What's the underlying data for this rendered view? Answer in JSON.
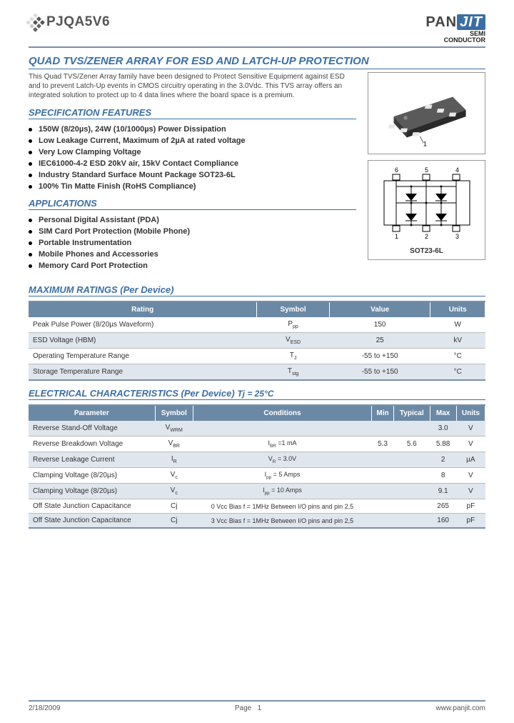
{
  "header": {
    "part_number": "PJQA5V6",
    "brand_pan": "PAN",
    "brand_jit": "JIT",
    "brand_sub1": "SEMI",
    "brand_sub2": "CONDUCTOR"
  },
  "title": "QUAD TVS/ZENER ARRAY FOR ESD AND LATCH-UP PROTECTION",
  "intro": "This Quad TVS/Zener Array family have been designed to Protect Sensitive Equipment against ESD and to prevent Latch-Up events in CMOS circuitry operating in the 3.0Vdc. This TVS array offers an integrated solution to protect up to 4 data lines where the board space is a premium.",
  "spec_heading": "SPECIFICATION FEATURES",
  "spec_features": [
    "150W (8/20µs), 24W (10/1000µs) Power Dissipation",
    "Low Leakage Current, Maximum of 2µA at rated voltage",
    "Very Low Clamping Voltage",
    "IEC61000-4-2 ESD 20kV air, 15kV Contact Compliance",
    "Industry Standard Surface Mount Package SOT23-6L",
    "100% Tin Matte Finish (RoHS Compliance)"
  ],
  "app_heading": "APPLICATIONS",
  "applications": [
    "Personal Digital Assistant (PDA)",
    "SIM Card Port Protection (Mobile Phone)",
    "Portable Instrumentation",
    "Mobile Phones and Accessories",
    "Memory Card Port Protection"
  ],
  "package": {
    "pin1": "1",
    "pins_top": [
      "6",
      "5",
      "4"
    ],
    "pins_bot": [
      "1",
      "2",
      "3"
    ],
    "label": "SOT23-6L"
  },
  "max_ratings": {
    "heading": "MAXIMUM RATINGS  (Per Device)",
    "columns": [
      "Rating",
      "Symbol",
      "Value",
      "Units"
    ],
    "rows": [
      {
        "rating": "Peak Pulse Power (8/20µs Waveform)",
        "symbol": "P<sub>pp</sub>",
        "value": "150",
        "units": "W",
        "alt": false
      },
      {
        "rating": "ESD Voltage (HBM)",
        "symbol": "V<sub>ESD</sub>",
        "value": "25",
        "units": "kV",
        "alt": true
      },
      {
        "rating": "Operating Temperature Range",
        "symbol": "T<sub>J</sub>",
        "value": "-55 to +150",
        "units": "°C",
        "alt": false
      },
      {
        "rating": "Storage Temperature Range",
        "symbol": "T<sub>stg</sub>",
        "value": "-55 to +150",
        "units": "°C",
        "alt": true
      }
    ]
  },
  "elec": {
    "heading": "ELECTRICAL CHARACTERISTICS (Per Device)",
    "cond": "Tj = 25°C",
    "columns": [
      "Parameter",
      "Symbol",
      "Conditions",
      "Min",
      "Typical",
      "Max",
      "Units"
    ],
    "rows": [
      {
        "p": "Reverse Stand-Off Voltage",
        "s": "V<sub>WRM</sub>",
        "c": "",
        "min": "",
        "typ": "",
        "max": "3.0",
        "u": "V",
        "alt": true
      },
      {
        "p": "Reverse Breakdown Voltage",
        "s": "V<sub>BR</sub>",
        "c": "I<sub>BR</sub> =1 mA",
        "min": "5.3",
        "typ": "5.6",
        "max": "5.88",
        "u": "V",
        "alt": false
      },
      {
        "p": "Reverse Leakage Current",
        "s": "I<sub>R</sub>",
        "c": "V<sub>R</sub> = 3.0V",
        "min": "",
        "typ": "",
        "max": "2",
        "u": "µA",
        "alt": true
      },
      {
        "p": "Clamping Voltage (8/20µs)",
        "s": "V<sub>c</sub>",
        "c": "I<sub>pp</sub>  = 5 Amps",
        "min": "",
        "typ": "",
        "max": "8",
        "u": "V",
        "alt": false
      },
      {
        "p": "Clamping Voltage (8/20µs)",
        "s": "V<sub>c</sub>",
        "c": "I<sub>pp</sub>  = 10 Amps",
        "min": "",
        "typ": "",
        "max": "9.1",
        "u": "V",
        "alt": true
      },
      {
        "p": "Off State Junction Capacitance",
        "s": "Cj",
        "c": "0 Vcc Bias f = 1MHz Between I/O pins and pin 2,5",
        "min": "",
        "typ": "",
        "max": "265",
        "u": "pF",
        "alt": false
      },
      {
        "p": "Off State Junction Capacitance",
        "s": "Cj",
        "c": "3 Vcc Bias f = 1MHz Between I/O pins and pin 2,5",
        "min": "",
        "typ": "",
        "max": "160",
        "u": "pF",
        "alt": true
      }
    ]
  },
  "footer": {
    "date": "2/18/2009",
    "page_label": "Page",
    "page_no": "1",
    "url": "www.panjit.com"
  },
  "colors": {
    "accent": "#3b6ea5",
    "header_border": "#7b8fa6",
    "th_bg": "#6b89a5",
    "alt_row": "#dfe6ee"
  }
}
